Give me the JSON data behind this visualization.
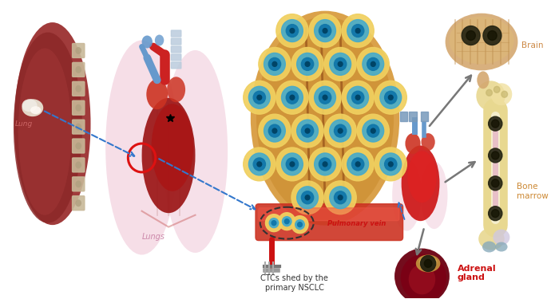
{
  "figure_width": 6.9,
  "figure_height": 3.75,
  "dpi": 100,
  "background_color": "#ffffff",
  "labels": {
    "lung_label": "Lung",
    "lungs_label": "Lungs",
    "brain": "Brain",
    "bone_marrow": "Bone\nmarrow",
    "adrenal_gland": "Adrenal\ngland",
    "pulmonary_vein": "Pulmonary vein",
    "ctcs": "CTCs shed by the\nprimary NSCLC"
  },
  "label_colors": {
    "lung_label": "#cc6666",
    "lungs_label": "#cc88aa",
    "brain": "#cc8844",
    "bone_marrow": "#cc8833",
    "adrenal_gland": "#cc1111",
    "pulmonary_vein": "#cc1111",
    "ctcs": "#333333"
  }
}
